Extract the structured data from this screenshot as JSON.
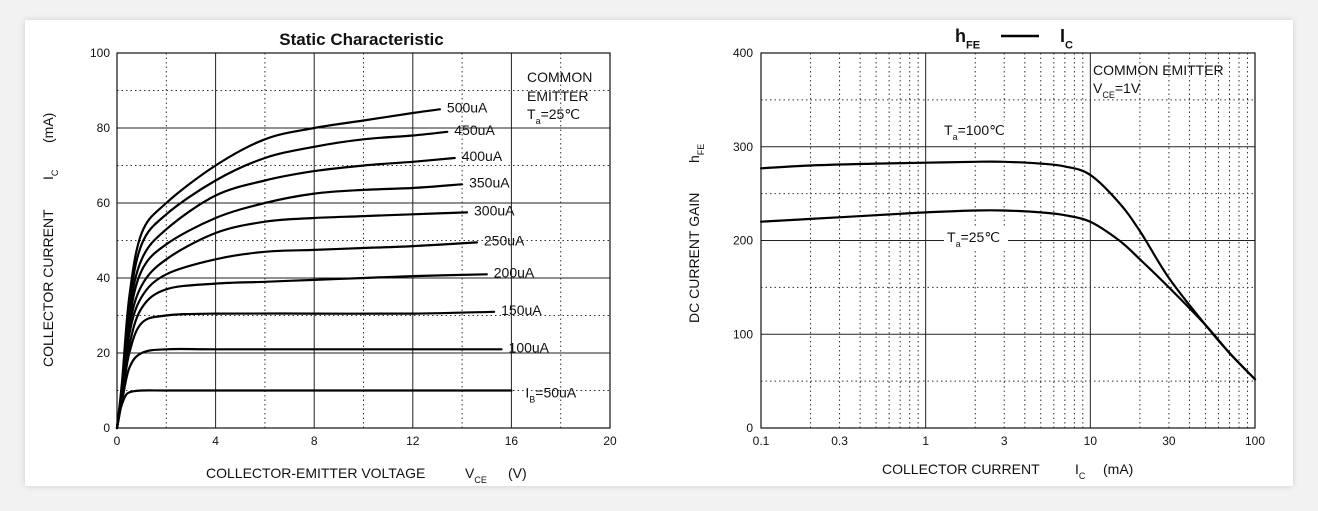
{
  "chart_data": [
    {
      "type": "line",
      "title": "Static Characteristic",
      "xlabel": "COLLECTOR-EMITTER VOLTAGE",
      "xlabel_symbol": "V",
      "xlabel_sub": "CE",
      "xlabel_unit": "(V)",
      "ylabel": "COLLECTOR CURRENT",
      "ylabel_symbol": "I",
      "ylabel_sub": "C",
      "ylabel_unit": "(mA)",
      "xlim": [
        0,
        20
      ],
      "ylim": [
        0,
        100
      ],
      "xticks": [
        0,
        4,
        8,
        12,
        16,
        20
      ],
      "yticks": [
        0,
        20,
        40,
        60,
        80,
        100
      ],
      "grid": true,
      "annotation": {
        "lines": [
          "COMMON",
          "EMITTER"
        ],
        "cond_symbol": "T",
        "cond_sub": "a",
        "cond_value": "=25℃"
      },
      "series": [
        {
          "name": "500uA",
          "x": [
            0,
            0.2,
            0.5,
            1,
            2,
            4,
            6,
            8,
            10,
            12,
            13.1
          ],
          "y": [
            0,
            12,
            35,
            52,
            60,
            70,
            77,
            80,
            82,
            84,
            85
          ]
        },
        {
          "name": "450uA",
          "x": [
            0,
            0.2,
            0.5,
            1,
            2,
            4,
            6,
            8,
            10,
            12,
            13.4
          ],
          "y": [
            0,
            11,
            33,
            49,
            57,
            66,
            72,
            75,
            77,
            78,
            79
          ]
        },
        {
          "name": "400uA",
          "x": [
            0,
            0.2,
            0.5,
            1,
            2,
            4,
            6,
            8,
            10,
            12,
            13.7
          ],
          "y": [
            0,
            10,
            31,
            45,
            53,
            62,
            66,
            68.5,
            70,
            71,
            72
          ]
        },
        {
          "name": "350uA",
          "x": [
            0,
            0.2,
            0.5,
            1,
            2,
            4,
            6,
            8,
            10,
            12,
            14.0
          ],
          "y": [
            0,
            10,
            29,
            42,
            49,
            56,
            60,
            62.5,
            63.5,
            64,
            65
          ]
        },
        {
          "name": "300uA",
          "x": [
            0,
            0.2,
            0.5,
            1,
            2,
            4,
            6,
            8,
            10,
            12,
            14.2
          ],
          "y": [
            0,
            9,
            27,
            38,
            45,
            52,
            55,
            56,
            56.5,
            57,
            57.5
          ]
        },
        {
          "name": "250uA",
          "x": [
            0,
            0.2,
            0.5,
            1,
            2,
            4,
            6,
            8,
            10,
            12,
            14.6
          ],
          "y": [
            0,
            8,
            25,
            35,
            41,
            45,
            47,
            47.5,
            48,
            48.5,
            49.5
          ]
        },
        {
          "name": "200uA",
          "x": [
            0,
            0.2,
            0.5,
            1,
            2,
            4,
            6,
            8,
            10,
            12,
            15.0
          ],
          "y": [
            0,
            8,
            22,
            32,
            37,
            38.5,
            39,
            39.5,
            40,
            40.5,
            41
          ]
        },
        {
          "name": "150uA",
          "x": [
            0,
            0.2,
            0.5,
            1,
            2,
            4,
            8,
            12,
            15.3
          ],
          "y": [
            0,
            8,
            20,
            28,
            30,
            30.5,
            30.5,
            30.5,
            31
          ]
        },
        {
          "name": "100uA",
          "x": [
            0,
            0.2,
            0.5,
            1,
            2,
            4,
            8,
            12,
            15.6
          ],
          "y": [
            0,
            7,
            16,
            20,
            21,
            21,
            21,
            21,
            21
          ]
        },
        {
          "name": "IB=50uA",
          "x": [
            0,
            0.1,
            0.3,
            0.5,
            1,
            2,
            4,
            8,
            12,
            16.0
          ],
          "y": [
            0,
            4,
            8,
            9.5,
            10,
            10,
            10,
            10,
            10,
            10
          ]
        }
      ],
      "series_labels": [
        "500uA",
        "450uA",
        "400uA",
        "350uA",
        "300uA",
        "250uA",
        "200uA",
        "150uA",
        "100uA",
        "=50uA"
      ],
      "label_prefix": {
        "symbol": "I",
        "sub": "B"
      }
    },
    {
      "type": "line",
      "title_symbol": "h",
      "title_symbol_sub": "FE",
      "title_dash": "—",
      "title_symbol2": "I",
      "title_symbol2_sub": "C",
      "xlabel": "COLLECTOR CURRENT",
      "xlabel_symbol": "I",
      "xlabel_sub": "C",
      "xlabel_unit": "(mA)",
      "ylabel": "DC CURRENT GAIN",
      "ylabel_symbol": "h",
      "ylabel_sub": "FE",
      "xscale": "log",
      "xlim": [
        0.1,
        100
      ],
      "ylim": [
        0,
        400
      ],
      "xticks": [
        0.1,
        0.3,
        1,
        3,
        10,
        30,
        100
      ],
      "xtick_labels": [
        "0.1",
        "0.3",
        "1",
        "3",
        "10",
        "30",
        "100"
      ],
      "yticks": [
        0,
        100,
        200,
        300,
        400
      ],
      "grid": true,
      "annotation": {
        "line": "COMMON EMITTER",
        "cond_symbol": "V",
        "cond_sub": "CE",
        "cond_value": "=1V"
      },
      "series": [
        {
          "name": "Ta=100℃",
          "label_symbol": "T",
          "label_sub": "a",
          "label_value": "=100℃",
          "x": [
            0.1,
            0.2,
            0.5,
            1,
            2,
            3,
            5,
            7,
            10,
            15,
            20,
            30,
            50,
            70,
            100
          ],
          "y": [
            277,
            280,
            282,
            283,
            284,
            284,
            282,
            279,
            270,
            240,
            210,
            160,
            110,
            80,
            52
          ]
        },
        {
          "name": "Ta=25℃",
          "label_symbol": "T",
          "label_sub": "a",
          "label_value": "=25℃",
          "x": [
            0.1,
            0.2,
            0.5,
            1,
            2,
            3,
            5,
            7,
            10,
            15,
            20,
            30,
            50,
            70,
            100
          ],
          "y": [
            220,
            223,
            227,
            230,
            232,
            232,
            230,
            227,
            220,
            200,
            180,
            150,
            110,
            80,
            52
          ]
        }
      ]
    }
  ]
}
